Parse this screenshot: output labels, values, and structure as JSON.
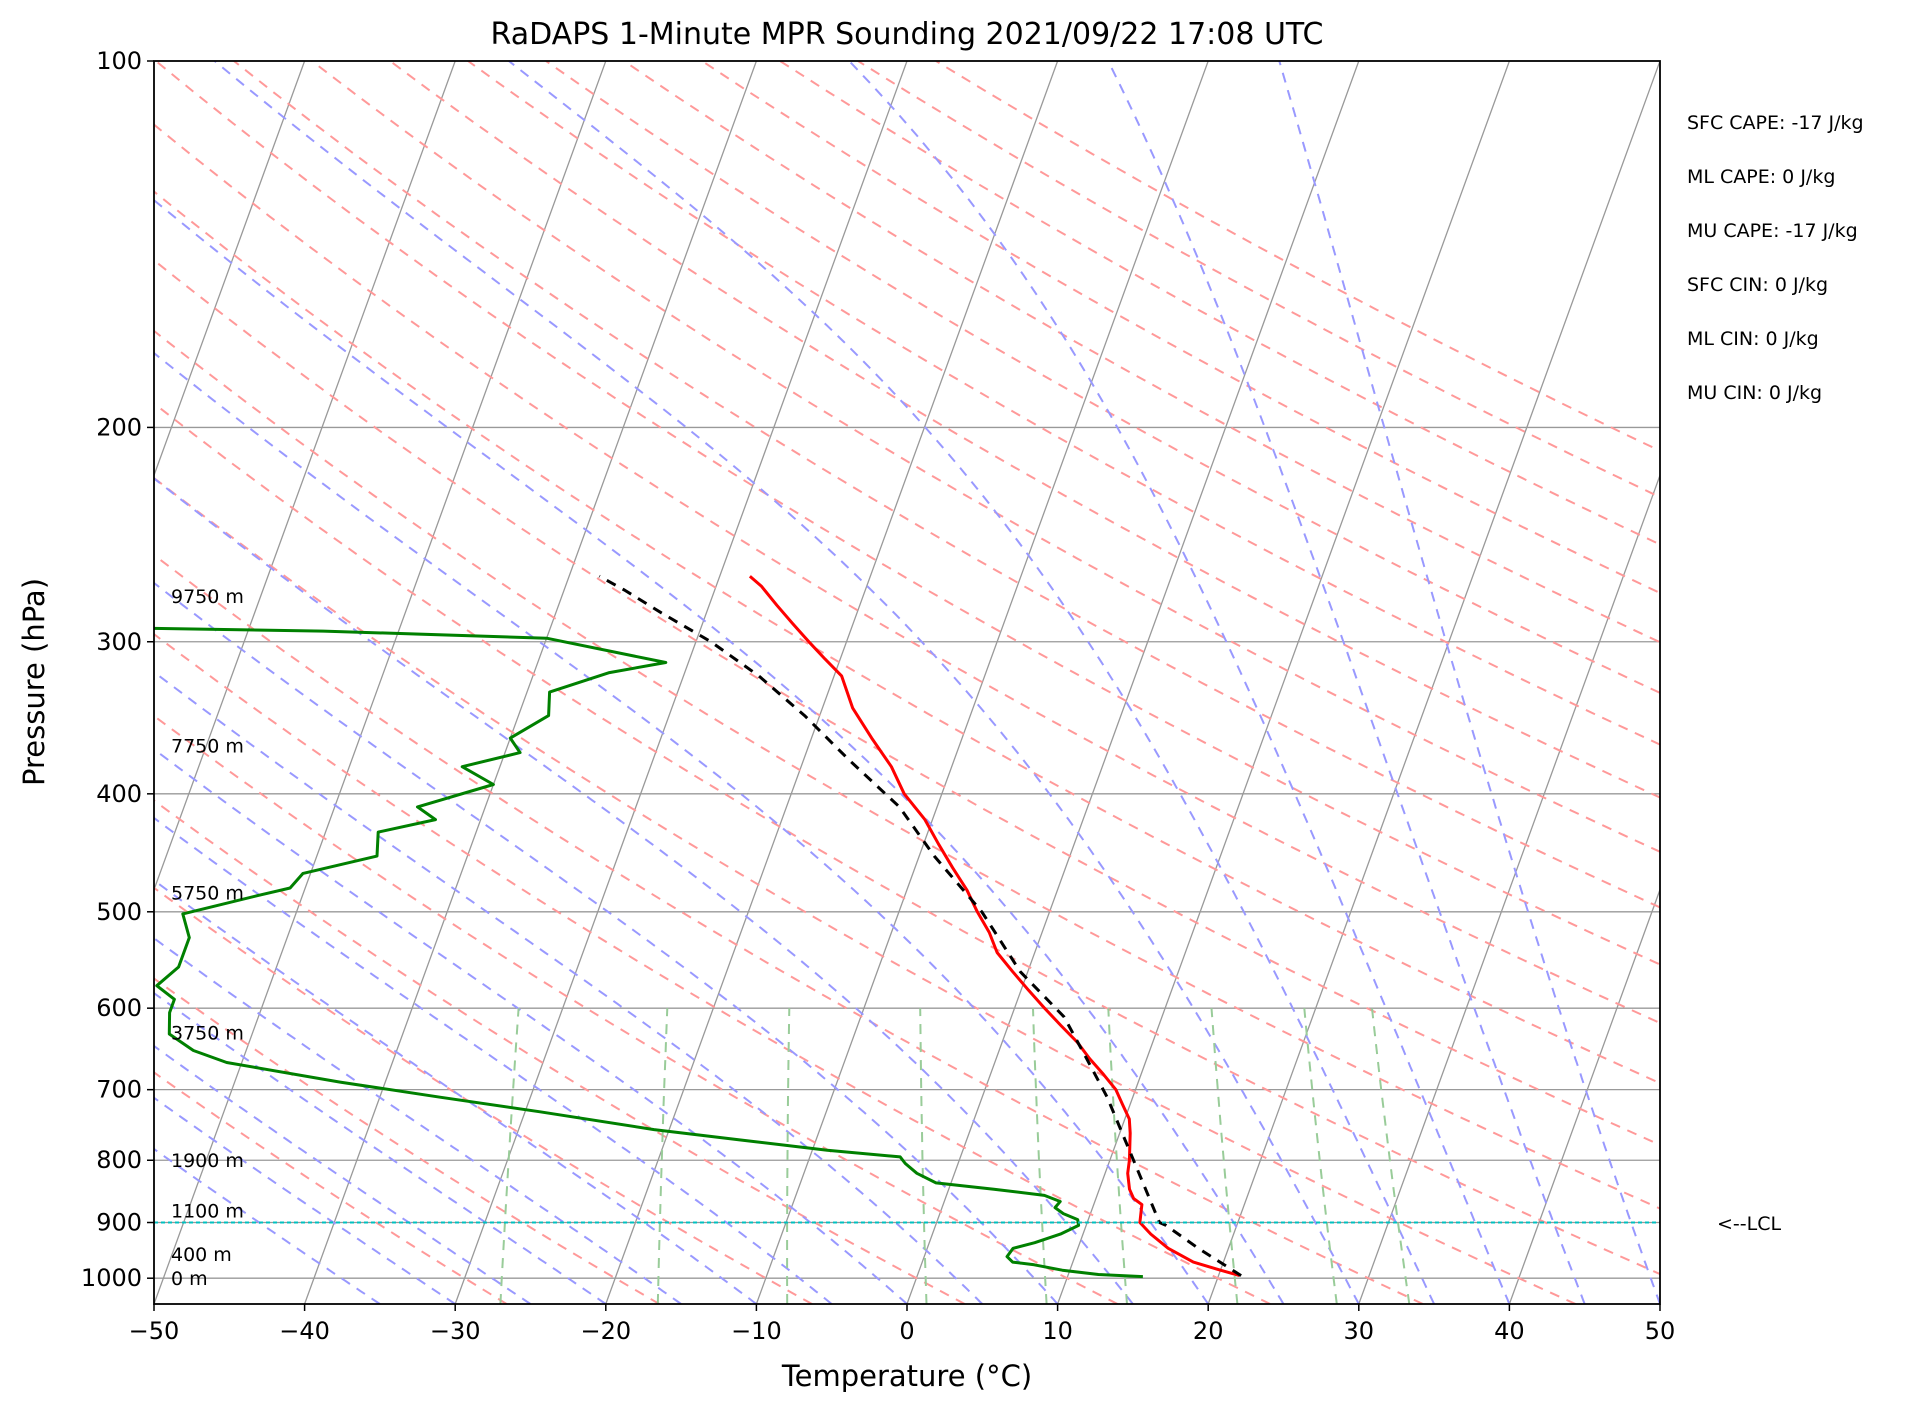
{
  "chart_data": {
    "type": "line",
    "title": "RaDAPS 1-Minute MPR Sounding 2021/09/22 17:08 UTC",
    "xlabel": "Temperature (°C)",
    "ylabel": "Pressure (hPa)",
    "xlim": [
      -50,
      50
    ],
    "ylim": [
      1050,
      100
    ],
    "y_scale": "log",
    "x_ticks": [
      "−50",
      "−40",
      "−30",
      "−20",
      "−10",
      "0",
      "10",
      "20",
      "30",
      "40",
      "50"
    ],
    "y_ticks": [
      "100",
      "200",
      "300",
      "400",
      "500",
      "600",
      "700",
      "800",
      "900",
      "1000"
    ],
    "grid": true,
    "skew": true,
    "series": [
      {
        "color": "#ff0000",
        "points": [
          [
            21.4,
            995
          ],
          [
            20,
            985
          ],
          [
            18,
            970
          ],
          [
            16,
            945
          ],
          [
            14.5,
            920
          ],
          [
            13.5,
            900
          ],
          [
            13.3,
            880
          ],
          [
            13.2,
            870
          ],
          [
            12.5,
            860
          ],
          [
            12,
            845
          ],
          [
            11.5,
            820
          ],
          [
            11.3,
            800
          ],
          [
            11,
            780
          ],
          [
            10.7,
            760
          ],
          [
            10.3,
            740
          ],
          [
            9.5,
            720
          ],
          [
            8.7,
            700
          ],
          [
            7.5,
            680
          ],
          [
            6.2,
            660
          ],
          [
            5,
            640
          ],
          [
            3.5,
            620
          ],
          [
            2,
            600
          ],
          [
            0.5,
            580
          ],
          [
            -1,
            560
          ],
          [
            -2.5,
            540
          ],
          [
            -3.5,
            520
          ],
          [
            -4.8,
            500
          ],
          [
            -6,
            480
          ],
          [
            -7.5,
            460
          ],
          [
            -9,
            440
          ],
          [
            -10.5,
            420
          ],
          [
            -12.5,
            400
          ],
          [
            -14,
            380
          ],
          [
            -16,
            360
          ],
          [
            -18,
            340
          ],
          [
            -19.5,
            320
          ],
          [
            -21,
            310
          ],
          [
            -22.5,
            300
          ],
          [
            -24,
            290
          ],
          [
            -25.5,
            280
          ],
          [
            -27,
            270
          ],
          [
            -28,
            265
          ]
        ]
      },
      {
        "color": "#008000",
        "points": [
          [
            15,
            997
          ],
          [
            12,
            993
          ],
          [
            9.5,
            985
          ],
          [
            7.5,
            975
          ],
          [
            6,
            970
          ],
          [
            5.5,
            960
          ],
          [
            5.7,
            945
          ],
          [
            7,
            935
          ],
          [
            8.5,
            920
          ],
          [
            9.5,
            905
          ],
          [
            9.3,
            895
          ],
          [
            8.2,
            885
          ],
          [
            7.5,
            875
          ],
          [
            7.7,
            865
          ],
          [
            6.5,
            855
          ],
          [
            3,
            845
          ],
          [
            -1,
            835
          ],
          [
            -2.5,
            820
          ],
          [
            -3.5,
            805
          ],
          [
            -4,
            795
          ],
          [
            -9,
            785
          ],
          [
            -15,
            770
          ],
          [
            -21,
            755
          ],
          [
            -29,
            730
          ],
          [
            -36,
            710
          ],
          [
            -43,
            690
          ],
          [
            -51,
            665
          ],
          [
            -53.5,
            650
          ],
          [
            -55.5,
            630
          ],
          [
            -56,
            605
          ],
          [
            -56,
            590
          ],
          [
            -57.5,
            575
          ],
          [
            -56.5,
            555
          ],
          [
            -56.5,
            525
          ],
          [
            -57.5,
            502
          ],
          [
            -53,
            485
          ],
          [
            -51,
            478
          ],
          [
            -50.5,
            465
          ],
          [
            -46,
            450
          ],
          [
            -46.5,
            430
          ],
          [
            -43,
            420
          ],
          [
            -44.5,
            410
          ],
          [
            -40,
            393
          ],
          [
            -42.5,
            380
          ],
          [
            -39,
            370
          ],
          [
            -40,
            360
          ],
          [
            -38,
            345
          ],
          [
            -38.5,
            330
          ],
          [
            -35,
            318
          ],
          [
            -31.5,
            312
          ],
          [
            -40,
            298
          ],
          [
            -55,
            294
          ],
          [
            -70,
            292
          ]
        ]
      },
      {
        "color": "#000000",
        "dashed": true,
        "points": [
          [
            21.5,
            995
          ],
          [
            18,
            945
          ],
          [
            15.3,
            905
          ],
          [
            14.8,
            900
          ],
          [
            8.3,
            710
          ],
          [
            6,
            660
          ],
          [
            3.5,
            610
          ],
          [
            -0.5,
            560
          ],
          [
            -4.5,
            500
          ],
          [
            -9,
            450
          ],
          [
            -12.5,
            410
          ],
          [
            -17,
            375
          ],
          [
            -21,
            345
          ],
          [
            -25,
            320
          ],
          [
            -29,
            300
          ],
          [
            -33,
            284
          ],
          [
            -36,
            272
          ],
          [
            -38,
            265
          ]
        ]
      }
    ],
    "height_labels": [
      {
        "text": "0 m",
        "p": 1000
      },
      {
        "text": "400 m",
        "p": 955
      },
      {
        "text": "1100 m",
        "p": 880
      },
      {
        "text": "1900 m",
        "p": 800
      },
      {
        "text": "3750 m",
        "p": 628
      },
      {
        "text": "5750 m",
        "p": 482
      },
      {
        "text": "7750 m",
        "p": 365
      },
      {
        "text": "9750 m",
        "p": 275
      }
    ],
    "lcl": {
      "pressure": 900,
      "label": "<--LCL",
      "color": "#00c0c0"
    },
    "stats": [
      "SFC CAPE: -17 J/kg",
      "ML CAPE: 0 J/kg",
      "MU CAPE: -17 J/kg",
      "SFC CIN: 0 J/kg",
      "ML CIN: 0 J/kg",
      "MU CIN: 0 J/kg"
    ],
    "colors": {
      "dry_adiabats": "#ff9999",
      "moist_adiabats": "#9999ff",
      "mixing_ratio": "#99cc99",
      "isotherms": "#999999",
      "isobars": "#999999"
    }
  }
}
